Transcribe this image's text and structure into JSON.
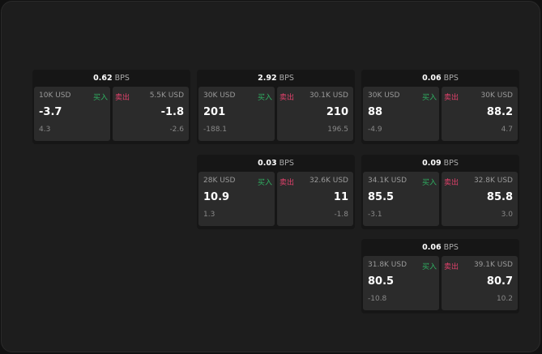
{
  "unit": "BPS",
  "buy_label": "买入",
  "sell_label": "卖出",
  "colors": {
    "buy": "#2fb062",
    "sell": "#e0416b"
  },
  "cards": [
    {
      "spread": "0.62",
      "bid": {
        "size": "10K USD",
        "price": "-3.7",
        "change": "4.3"
      },
      "ask": {
        "size": "5.5K USD",
        "price": "-1.8",
        "change": "-2.6"
      }
    },
    {
      "spread": "2.92",
      "bid": {
        "size": "30K USD",
        "price": "201",
        "change": "-188.1"
      },
      "ask": {
        "size": "30.1K USD",
        "price": "210",
        "change": "196.5"
      }
    },
    {
      "spread": "0.06",
      "bid": {
        "size": "30K USD",
        "price": "88",
        "change": "-4.9"
      },
      "ask": {
        "size": "30K USD",
        "price": "88.2",
        "change": "4.7"
      }
    },
    {
      "spread": "0.03",
      "bid": {
        "size": "28K USD",
        "price": "10.9",
        "change": "1.3"
      },
      "ask": {
        "size": "32.6K USD",
        "price": "11",
        "change": "-1.8"
      }
    },
    {
      "spread": "0.09",
      "bid": {
        "size": "34.1K USD",
        "price": "85.5",
        "change": "-3.1"
      },
      "ask": {
        "size": "32.8K USD",
        "price": "85.8",
        "change": "3.0"
      }
    },
    {
      "spread": "0.06",
      "bid": {
        "size": "31.8K USD",
        "price": "80.5",
        "change": "-10.8"
      },
      "ask": {
        "size": "39.1K USD",
        "price": "80.7",
        "change": "10.2"
      }
    }
  ]
}
